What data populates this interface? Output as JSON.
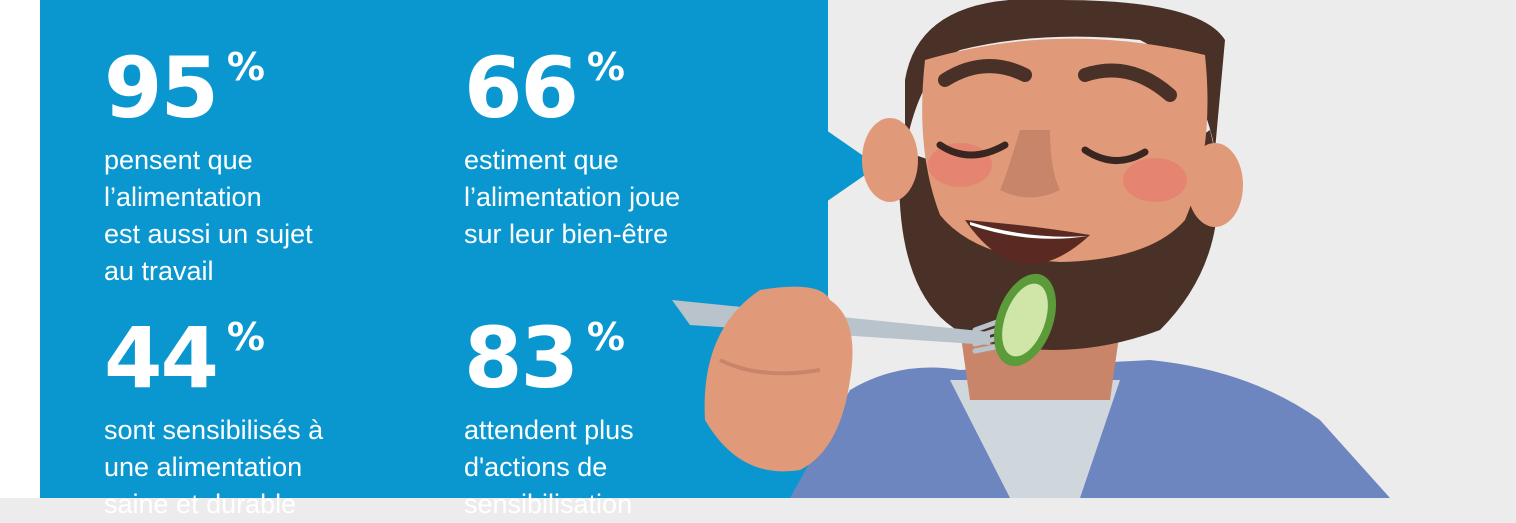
{
  "stats": [
    {
      "value": "95",
      "unit": "%",
      "text": "pensent que\nl’alimentation\nest aussi un sujet\nau travail"
    },
    {
      "value": "66",
      "unit": "%",
      "text": "estiment que\nl’alimentation joue\nsur leur bien-être"
    },
    {
      "value": "44",
      "unit": "%",
      "text": "sont sensibilisés à\nune alimentation\nsaine et durable"
    },
    {
      "value": "83",
      "unit": "%",
      "text": "attendent plus\nd'actions de\nsensibilisation"
    }
  ],
  "colors": {
    "panel": "#0a97cf",
    "background": "#ececec",
    "text": "#ffffff",
    "beard": "#4a3128",
    "skin": "#e09a7a",
    "shirt": "#6d86c0"
  },
  "illustration": "man-eating-cucumber-icon"
}
